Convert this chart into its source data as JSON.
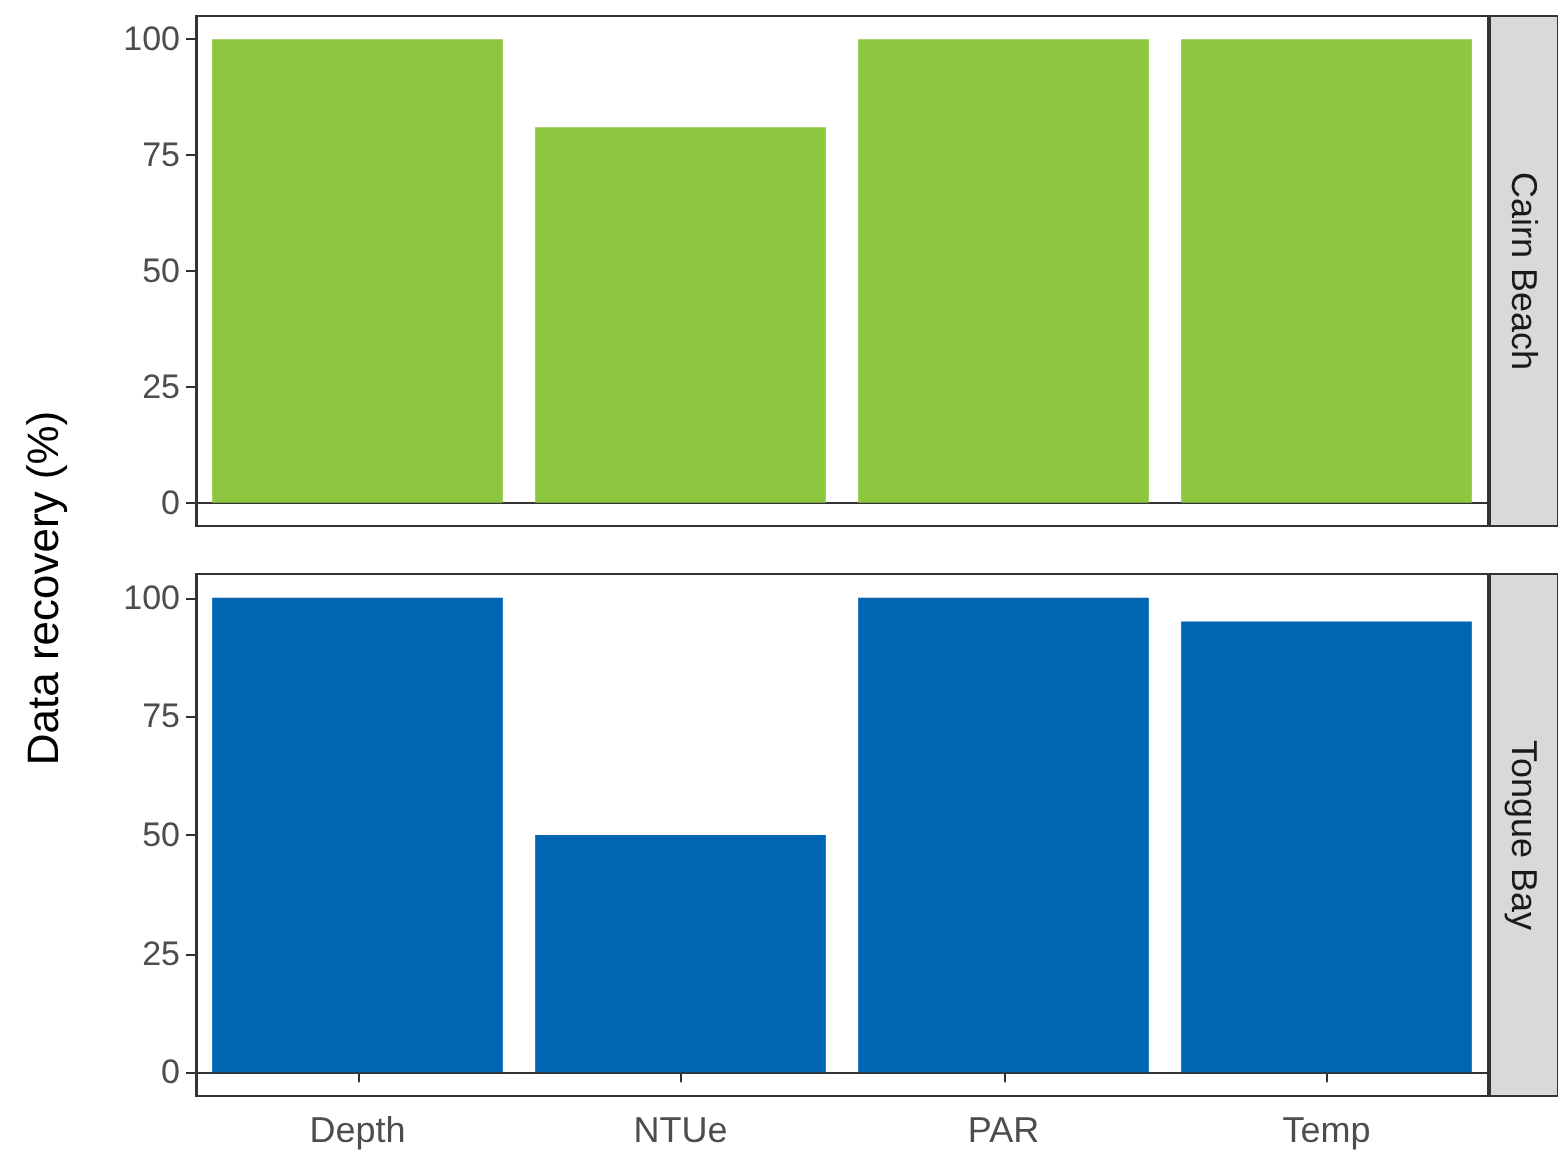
{
  "chart_data": [
    {
      "type": "bar",
      "title": "Cairn Beach",
      "ylabel": "Data recovery (%)",
      "categories": [
        null,
        null,
        null,
        null
      ],
      "series": [
        {
          "color": "#8dc63f",
          "values": [
            100,
            81,
            100,
            100
          ]
        }
      ],
      "ylim": [
        -5,
        105
      ],
      "yticks": [
        0,
        25,
        50,
        75,
        100
      ],
      "tick_labels": "y"
    },
    {
      "type": "bar",
      "title": "Tongue Bay",
      "categories": [
        "Depth",
        "NTUe",
        "PAR",
        "Temp"
      ],
      "series": [
        {
          "color": "#0066b3",
          "values": [
            100,
            50,
            100,
            95
          ]
        }
      ],
      "ylim": [
        -5,
        105
      ],
      "yticks": [
        0,
        25,
        50,
        75,
        100
      ]
    }
  ]
}
